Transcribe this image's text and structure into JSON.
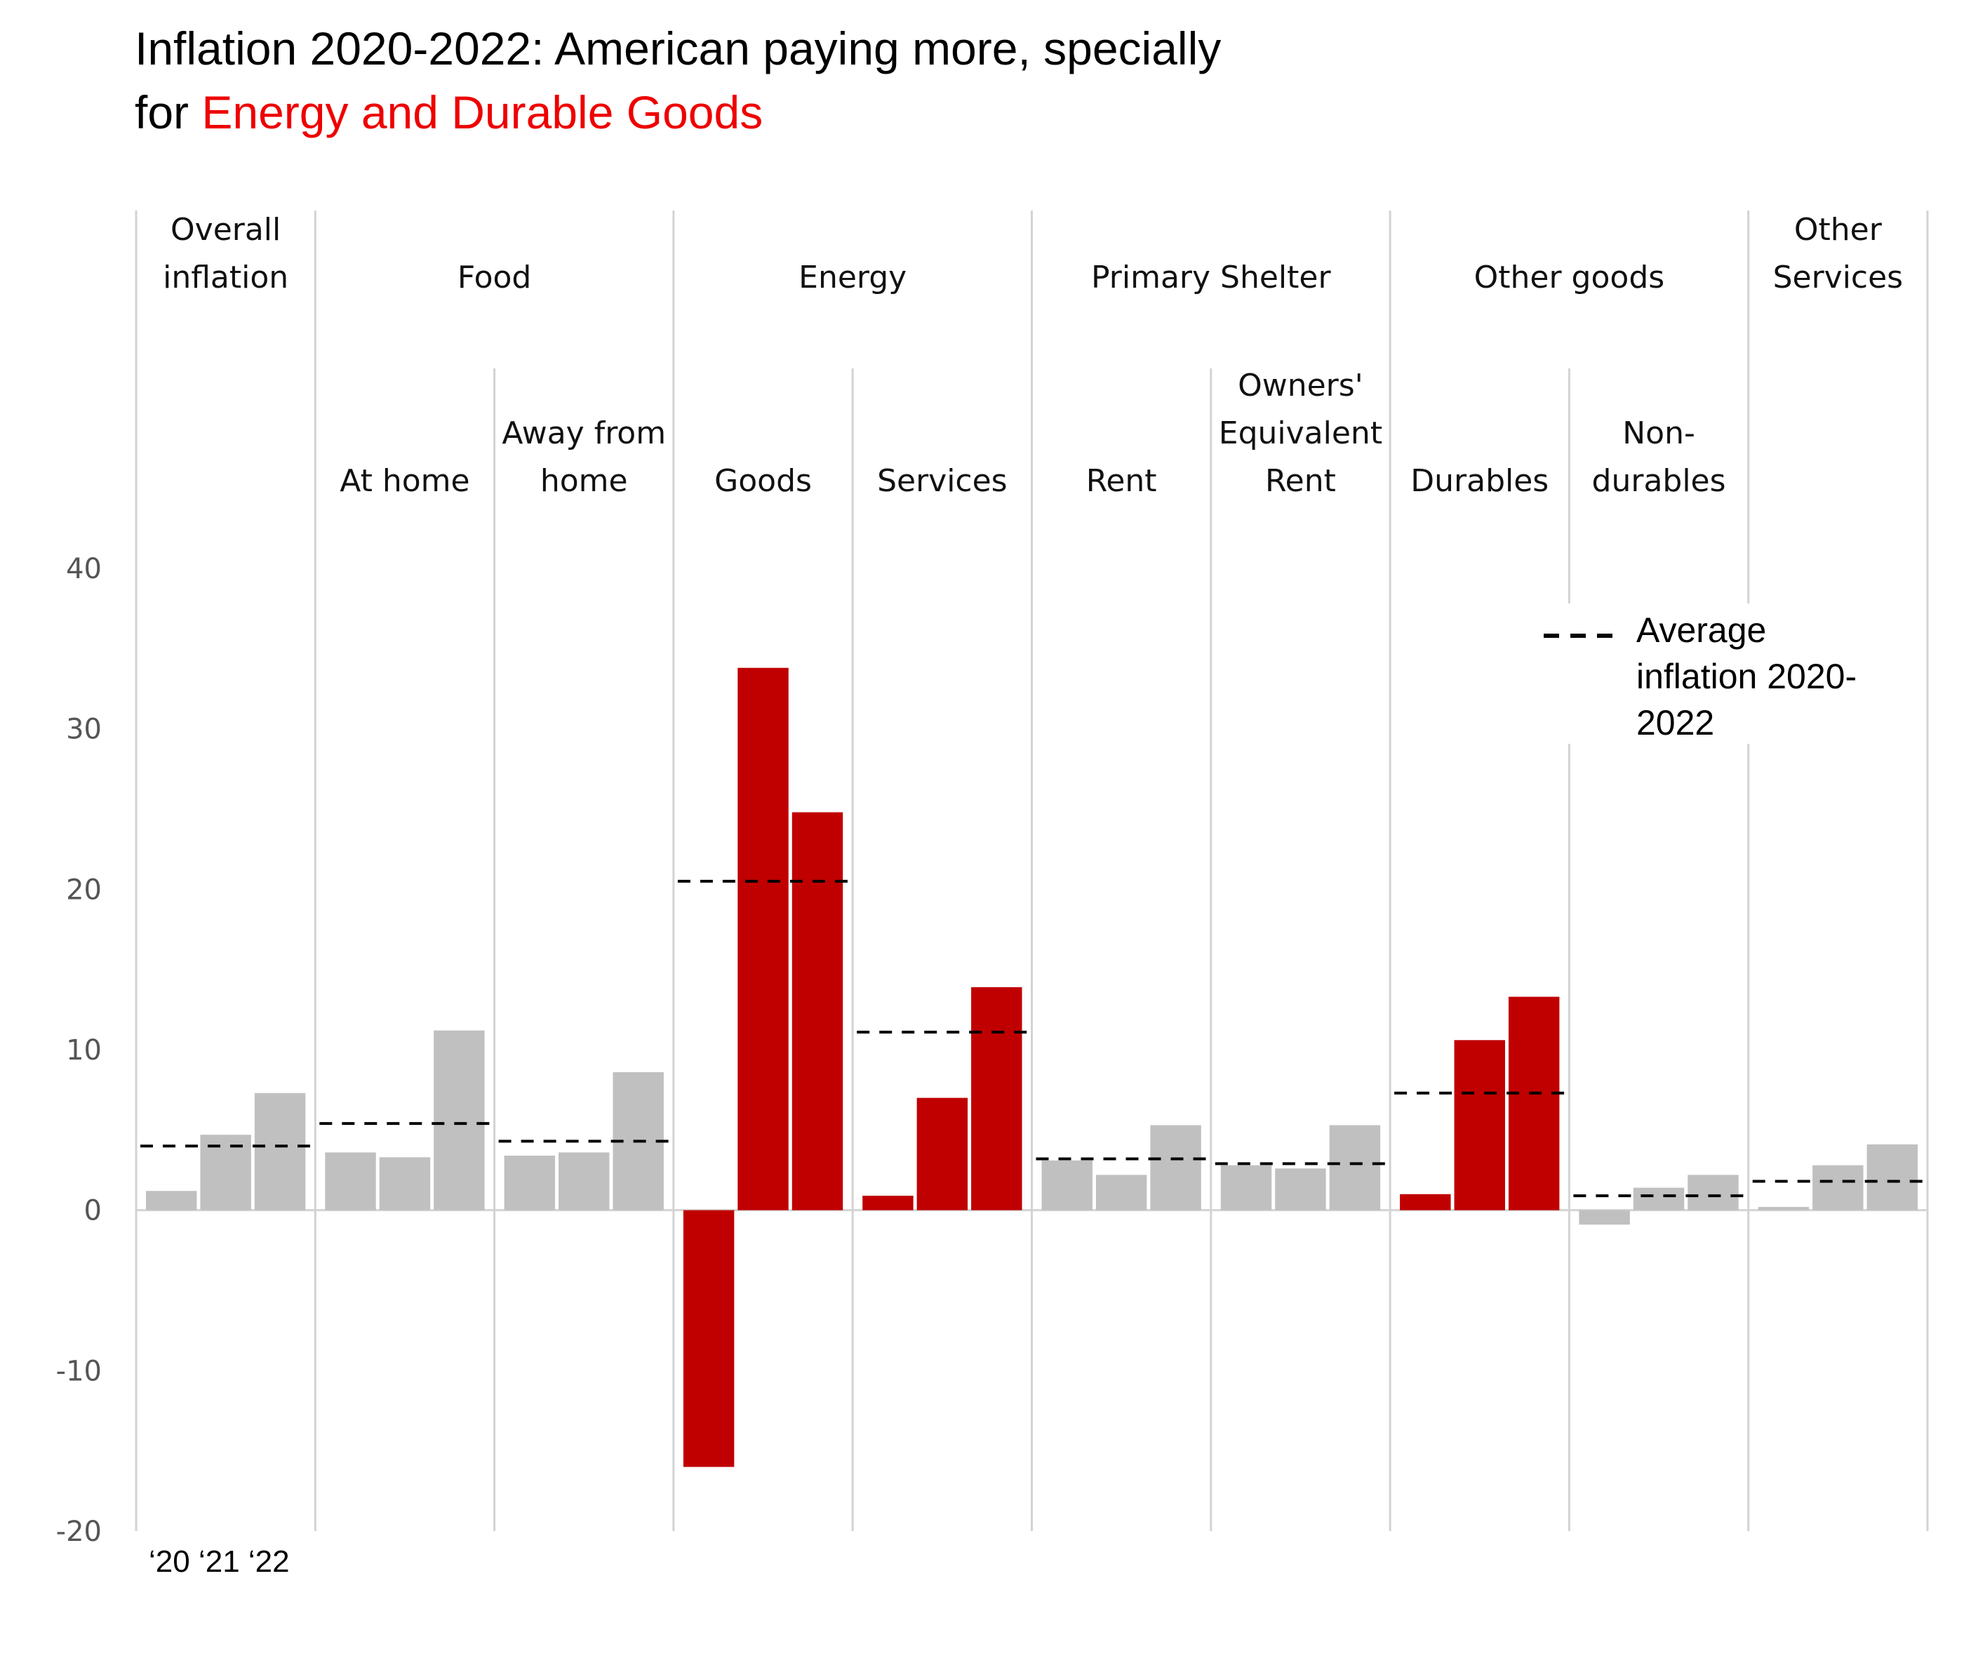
{
  "title": {
    "line1": "Inflation 2020-2022: American paying more, specially",
    "line2_prefix": "for ",
    "line2_highlight": "Energy and Durable Goods",
    "highlight_color": "#ee0000"
  },
  "colors": {
    "highlight_bar": "#c00000",
    "normal_bar": "#c0c0c0",
    "gridline": "#d3d3d3",
    "average_line": "#000000"
  },
  "chart_data": {
    "type": "bar",
    "ylim": [
      -20,
      40
    ],
    "yticks": [
      40,
      30,
      20,
      10,
      0,
      -10,
      -20
    ],
    "year_axis_label": "‘20 ‘21 ‘22",
    "legend": {
      "lines": [
        "Average",
        "inflation 2020-",
        "2022"
      ],
      "placement": "right"
    },
    "groups": [
      {
        "name_lines": [
          "Overall",
          "inflation"
        ],
        "categories": [
          {
            "label_lines": [],
            "highlight": false,
            "values": [
              1.2,
              4.7,
              7.3
            ],
            "average": 4.0
          }
        ]
      },
      {
        "name_lines": [
          "Food"
        ],
        "categories": [
          {
            "label_lines": [
              "At home"
            ],
            "highlight": false,
            "values": [
              3.6,
              3.3,
              11.2
            ],
            "average": 5.4
          },
          {
            "label_lines": [
              "Away from",
              "home"
            ],
            "highlight": false,
            "values": [
              3.4,
              3.6,
              8.6
            ],
            "average": 4.3
          }
        ]
      },
      {
        "name_lines": [
          "Energy"
        ],
        "categories": [
          {
            "label_lines": [
              "Goods"
            ],
            "highlight": true,
            "values": [
              -16.0,
              33.8,
              24.8
            ],
            "average": 20.5
          },
          {
            "label_lines": [
              "Services"
            ],
            "highlight": true,
            "values": [
              0.9,
              7.0,
              13.9
            ],
            "average": 11.1
          }
        ]
      },
      {
        "name_lines": [
          "Primary Shelter"
        ],
        "categories": [
          {
            "label_lines": [
              "Rent"
            ],
            "highlight": false,
            "values": [
              3.1,
              2.2,
              5.3
            ],
            "average": 3.2
          },
          {
            "label_lines": [
              "Owners'",
              "Equivalent",
              "Rent"
            ],
            "highlight": false,
            "values": [
              2.8,
              2.6,
              5.3
            ],
            "average": 2.9
          }
        ]
      },
      {
        "name_lines": [
          "Other goods"
        ],
        "categories": [
          {
            "label_lines": [
              "Durables"
            ],
            "highlight": true,
            "values": [
              1.0,
              10.6,
              13.3
            ],
            "average": 7.3
          },
          {
            "label_lines": [
              "Non-",
              "durables"
            ],
            "highlight": false,
            "values": [
              -0.9,
              1.4,
              2.2
            ],
            "average": 0.9
          }
        ]
      },
      {
        "name_lines": [
          "Other",
          "Services"
        ],
        "categories": [
          {
            "label_lines": [],
            "highlight": false,
            "values": [
              0.2,
              2.8,
              4.1
            ],
            "average": 1.8
          }
        ]
      }
    ]
  }
}
